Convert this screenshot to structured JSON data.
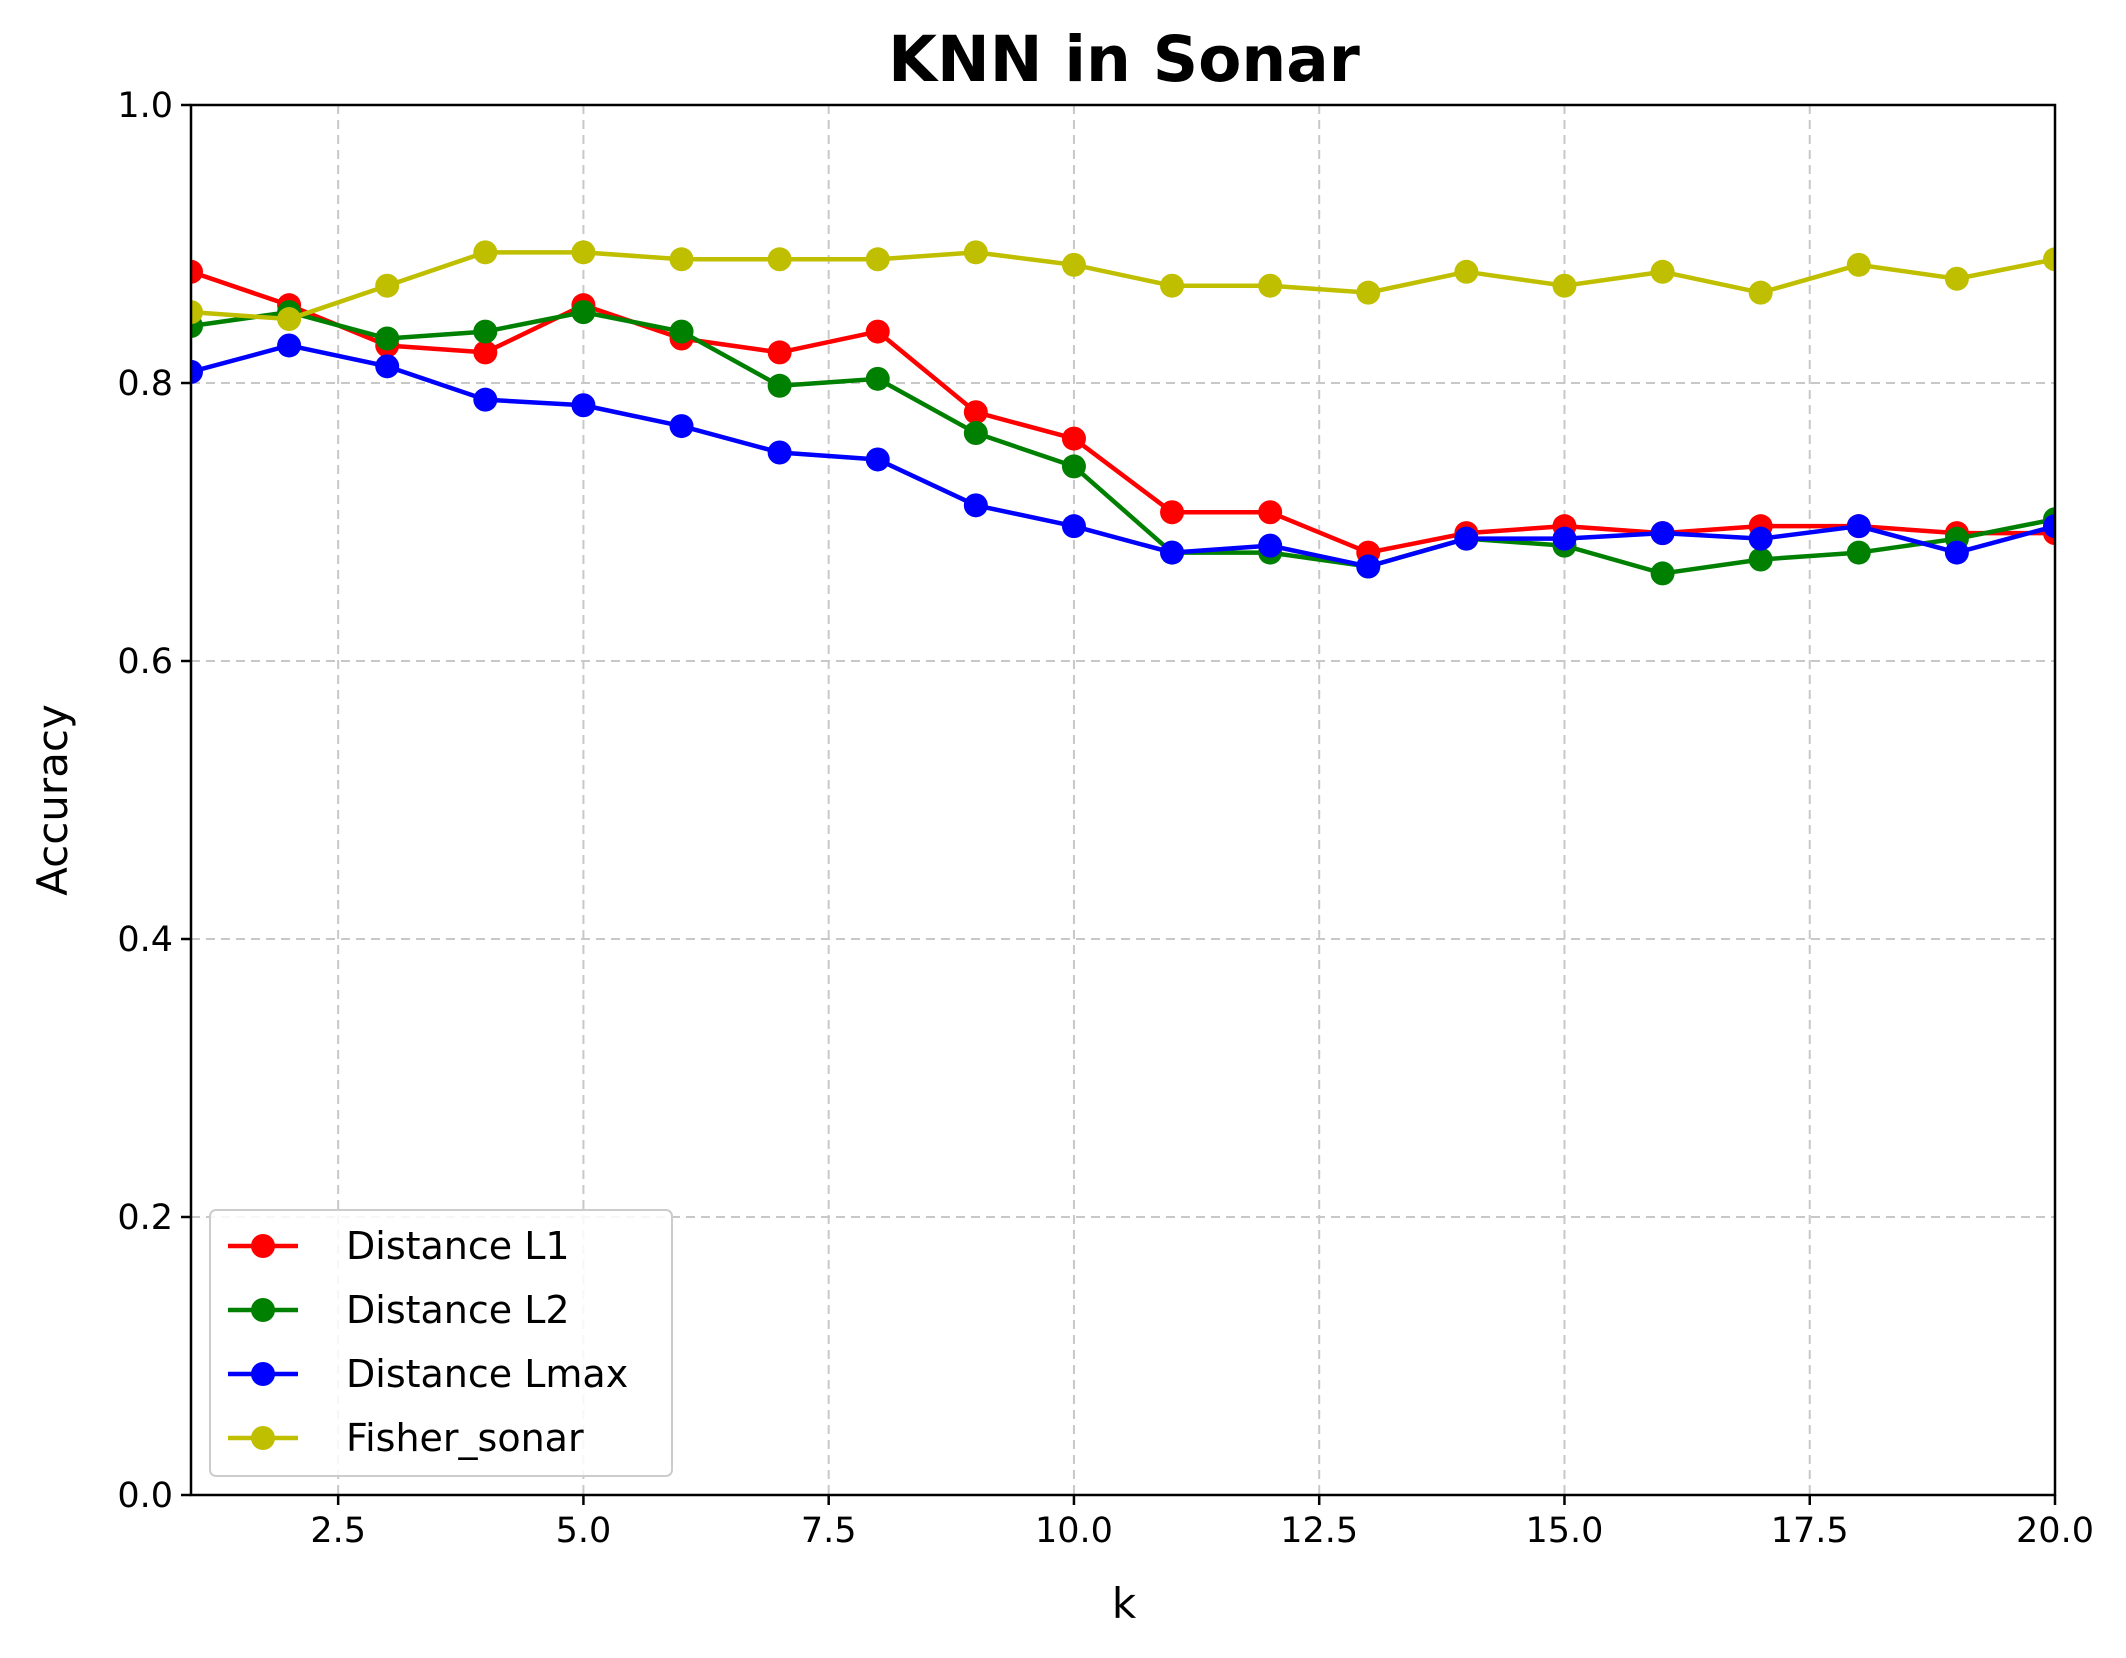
{
  "chart_data": {
    "type": "line",
    "title": "KNN in Sonar",
    "xlabel": "k",
    "ylabel": "Accuracy",
    "xlim": [
      1,
      20
    ],
    "ylim": [
      0.0,
      1.0
    ],
    "xticks": [
      "2.5",
      "5.0",
      "7.5",
      "10.0",
      "12.5",
      "15.0",
      "17.5",
      "20.0"
    ],
    "xtick_values": [
      2.5,
      5.0,
      7.5,
      10.0,
      12.5,
      15.0,
      17.5,
      20.0
    ],
    "yticks": [
      "0.0",
      "0.2",
      "0.4",
      "0.6",
      "0.8",
      "1.0"
    ],
    "ytick_values": [
      0.0,
      0.2,
      0.4,
      0.6,
      0.8,
      1.0
    ],
    "grid": true,
    "legend_position": "lower-left",
    "x": [
      1,
      2,
      3,
      4,
      5,
      6,
      7,
      8,
      9,
      10,
      11,
      12,
      13,
      14,
      15,
      16,
      17,
      18,
      19,
      20
    ],
    "series": [
      {
        "name": "Distance L1",
        "color": "#ff0000",
        "values": [
          0.88,
          0.856,
          0.827,
          0.822,
          0.856,
          0.832,
          0.822,
          0.837,
          0.779,
          0.76,
          0.707,
          0.707,
          0.678,
          0.692,
          0.697,
          0.692,
          0.697,
          0.697,
          0.692,
          0.692
        ]
      },
      {
        "name": "Distance L2",
        "color": "#008000",
        "values": [
          0.841,
          0.851,
          0.832,
          0.837,
          0.851,
          0.837,
          0.798,
          0.803,
          0.764,
          0.74,
          0.678,
          0.678,
          0.668,
          0.688,
          0.683,
          0.663,
          0.673,
          0.678,
          0.688,
          0.702
        ]
      },
      {
        "name": "Distance Lmax",
        "color": "#0000ff",
        "values": [
          0.808,
          0.827,
          0.812,
          0.788,
          0.784,
          0.769,
          0.75,
          0.745,
          0.712,
          0.697,
          0.678,
          0.683,
          0.668,
          0.688,
          0.688,
          0.692,
          0.688,
          0.697,
          0.678,
          0.697
        ]
      },
      {
        "name": "Fisher_sonar",
        "color": "#bfbf00",
        "values": [
          0.851,
          0.846,
          0.87,
          0.894,
          0.894,
          0.889,
          0.889,
          0.889,
          0.894,
          0.885,
          0.87,
          0.87,
          0.865,
          0.88,
          0.87,
          0.88,
          0.865,
          0.885,
          0.875,
          0.889
        ]
      }
    ]
  }
}
